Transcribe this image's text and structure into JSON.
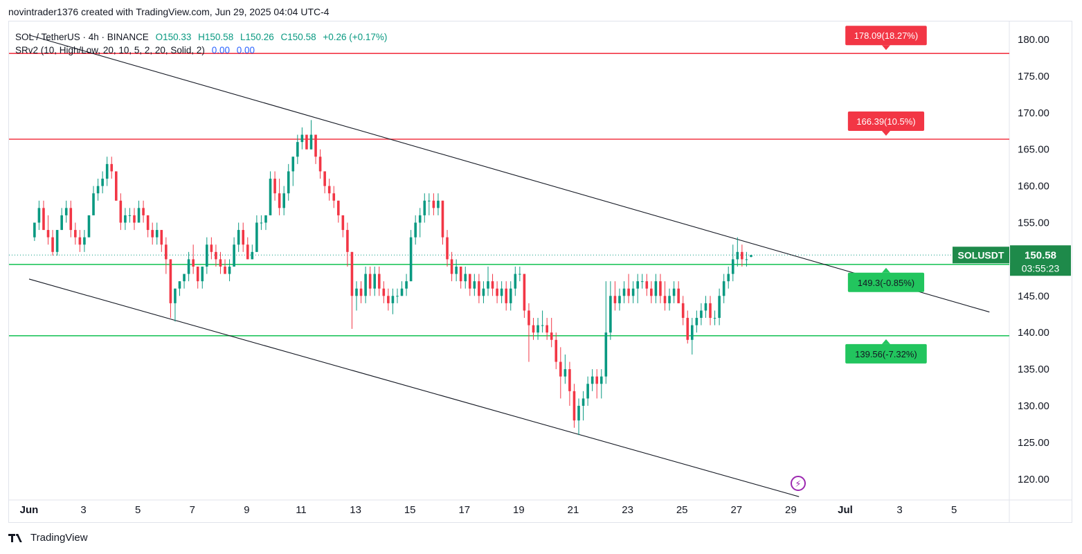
{
  "header": {
    "credit": "novintrader1376 created with TradingView.com, Jun 29, 2025 04:04 UTC-4"
  },
  "legend": {
    "symbol_line": "SOL / TetherUS · 4h · BINANCE",
    "o": "O150.33",
    "h": "H150.58",
    "l": "L150.26",
    "c": "C150.58",
    "change": "+0.26 (+0.17%)",
    "indicator": "SRv2 (10, High/Low, 20, 10, 5, 2, 20, Solid, 2)",
    "ind_v1": "0.00",
    "ind_v2": "0.00"
  },
  "price_tag": {
    "symbol": "SOLUSDT",
    "price": "150.58",
    "countdown": "03:55:23"
  },
  "footer": {
    "brand": "TradingView"
  },
  "colors": {
    "up": "#089981",
    "down": "#f23645",
    "resistance": "#f23645",
    "support": "#22c55e",
    "trend": "#131722"
  },
  "chart_data": {
    "type": "candlestick",
    "symbol": "SOL / TetherUS",
    "interval": "4h",
    "exchange": "BINANCE",
    "y_ticks": [
      180,
      175,
      170,
      165,
      160,
      155,
      150,
      145,
      140,
      135,
      130,
      125,
      120
    ],
    "y_tick_labels": [
      "180.00",
      "175.00",
      "170.00",
      "165.00",
      "160.00",
      "155.00",
      "150.00",
      "145.00",
      "140.00",
      "135.00",
      "130.00",
      "125.00",
      "120.00"
    ],
    "x_ticks": [
      {
        "day": 1,
        "label": "Jun"
      },
      {
        "day": 3,
        "label": "3"
      },
      {
        "day": 5,
        "label": "5"
      },
      {
        "day": 7,
        "label": "7"
      },
      {
        "day": 9,
        "label": "9"
      },
      {
        "day": 11,
        "label": "11"
      },
      {
        "day": 13,
        "label": "13"
      },
      {
        "day": 15,
        "label": "15"
      },
      {
        "day": 17,
        "label": "17"
      },
      {
        "day": 19,
        "label": "19"
      },
      {
        "day": 21,
        "label": "21"
      },
      {
        "day": 23,
        "label": "23"
      },
      {
        "day": 25,
        "label": "25"
      },
      {
        "day": 27,
        "label": "27"
      },
      {
        "day": 29,
        "label": "29"
      },
      {
        "day": 31,
        "label": "Jul"
      },
      {
        "day": 33,
        "label": "3"
      },
      {
        "day": 35,
        "label": "5"
      }
    ],
    "levels": [
      {
        "price": 178.09,
        "label": "178.09(18.27%)",
        "kind": "resistance",
        "label_day": 32.5
      },
      {
        "price": 166.39,
        "label": "166.39(10.5%)",
        "kind": "resistance",
        "label_day": 32.5
      },
      {
        "price": 149.3,
        "label": "149.3(-0.85%)",
        "kind": "support",
        "label_day": 32.5
      },
      {
        "price": 139.56,
        "label": "139.56(-7.32%)",
        "kind": "support",
        "label_day": 32.5
      }
    ],
    "last_price": 150.58,
    "trendlines": [
      {
        "from": {
          "day": 1.0,
          "price": 180.6
        },
        "to": {
          "day": 36.3,
          "price": 142.8
        }
      },
      {
        "from": {
          "day": 1.0,
          "price": 147.3
        },
        "to": {
          "day": 29.3,
          "price": 117.6
        }
      }
    ],
    "ohlc": [
      [
        153,
        155,
        152.5,
        155
      ],
      [
        155,
        158,
        154,
        157
      ],
      [
        157,
        158,
        154,
        154
      ],
      [
        154,
        156,
        152,
        153
      ],
      [
        153,
        154,
        150.5,
        151
      ],
      [
        151,
        154,
        150.5,
        154
      ],
      [
        154,
        157,
        154,
        156
      ],
      [
        156,
        158,
        155,
        157
      ],
      [
        157,
        158,
        153,
        154
      ],
      [
        154,
        155,
        152,
        153
      ],
      [
        153,
        154,
        151,
        152
      ],
      [
        152,
        154,
        151,
        153
      ],
      [
        153,
        156,
        153,
        156
      ],
      [
        156,
        160,
        156,
        159
      ],
      [
        159,
        161,
        158,
        160
      ],
      [
        160,
        162,
        159,
        161
      ],
      [
        161,
        164,
        160,
        163
      ],
      [
        163,
        164,
        161,
        162
      ],
      [
        162,
        162,
        158,
        158
      ],
      [
        158,
        159,
        154,
        155
      ],
      [
        155,
        157,
        154,
        156
      ],
      [
        156,
        157,
        155,
        156
      ],
      [
        156,
        157,
        154,
        155
      ],
      [
        155,
        158,
        155,
        157
      ],
      [
        157,
        158,
        155,
        156
      ],
      [
        156,
        156,
        153,
        154
      ],
      [
        154,
        155,
        152,
        153
      ],
      [
        153,
        155,
        152,
        154
      ],
      [
        154,
        154,
        151,
        152
      ],
      [
        152,
        153,
        148,
        150
      ],
      [
        150,
        150,
        142,
        144
      ],
      [
        144,
        146,
        141.5,
        146
      ],
      [
        146,
        147,
        145,
        147
      ],
      [
        147,
        148,
        146,
        148
      ],
      [
        148,
        151,
        147,
        150
      ],
      [
        150,
        152,
        148,
        149
      ],
      [
        149,
        149,
        146,
        147
      ],
      [
        147,
        149,
        146,
        149
      ],
      [
        149,
        153,
        148,
        152
      ],
      [
        152,
        153,
        150,
        151
      ],
      [
        151,
        152,
        149,
        150
      ],
      [
        150,
        151,
        148,
        149
      ],
      [
        149,
        150,
        148,
        148
      ],
      [
        148,
        150,
        147,
        149
      ],
      [
        149,
        153,
        149,
        152
      ],
      [
        152,
        155,
        151,
        154
      ],
      [
        154,
        155,
        151,
        152
      ],
      [
        152,
        153,
        150,
        150
      ],
      [
        150,
        152,
        150,
        151
      ],
      [
        151,
        156,
        151,
        155
      ],
      [
        155,
        156,
        154,
        155
      ],
      [
        155,
        156,
        154,
        156
      ],
      [
        156,
        162,
        156,
        161
      ],
      [
        161,
        162,
        158,
        159
      ],
      [
        159,
        161,
        156,
        157
      ],
      [
        157,
        160,
        156,
        159
      ],
      [
        159,
        163,
        158,
        162
      ],
      [
        162,
        164,
        160,
        164
      ],
      [
        164,
        167,
        163,
        166
      ],
      [
        166,
        168,
        165,
        167
      ],
      [
        167,
        167,
        165,
        165
      ],
      [
        165,
        169,
        165,
        167
      ],
      [
        167,
        167,
        163,
        164
      ],
      [
        164,
        165,
        161,
        162
      ],
      [
        162,
        162,
        159,
        160
      ],
      [
        160,
        161,
        158,
        159
      ],
      [
        159,
        160,
        157,
        158
      ],
      [
        158,
        158,
        155,
        156
      ],
      [
        156,
        156,
        153,
        154
      ],
      [
        154,
        155,
        149,
        151
      ],
      [
        151,
        151,
        140.5,
        145
      ],
      [
        145,
        147,
        143,
        146
      ],
      [
        146,
        147,
        144,
        145
      ],
      [
        145,
        149,
        144,
        148
      ],
      [
        148,
        149,
        145,
        146
      ],
      [
        146,
        149,
        145,
        148
      ],
      [
        148,
        149,
        145,
        146
      ],
      [
        146,
        147,
        144,
        145
      ],
      [
        145,
        146,
        143,
        144
      ],
      [
        144,
        146,
        142.5,
        145
      ],
      [
        145,
        146,
        144,
        145
      ],
      [
        145,
        147,
        145,
        146
      ],
      [
        146,
        148,
        145,
        147
      ],
      [
        147,
        154,
        147,
        153
      ],
      [
        153,
        156,
        152,
        155
      ],
      [
        155,
        157,
        153,
        156
      ],
      [
        156,
        159,
        155,
        158
      ],
      [
        158,
        159,
        156,
        158
      ],
      [
        158,
        159,
        156,
        157
      ],
      [
        157,
        159,
        156,
        158
      ],
      [
        158,
        158,
        152,
        153
      ],
      [
        153,
        154,
        149,
        150
      ],
      [
        150,
        151,
        147,
        148
      ],
      [
        148,
        150,
        147,
        149
      ],
      [
        149,
        149,
        146,
        147
      ],
      [
        147,
        149,
        146,
        148
      ],
      [
        148,
        148,
        145,
        146
      ],
      [
        146,
        148,
        145,
        147
      ],
      [
        147,
        148,
        144,
        145
      ],
      [
        145,
        147,
        144,
        146
      ],
      [
        146,
        149,
        145,
        147
      ],
      [
        147,
        148,
        145,
        146
      ],
      [
        146,
        147,
        144,
        145
      ],
      [
        145,
        147,
        144,
        146
      ],
      [
        146,
        147,
        143,
        144
      ],
      [
        144,
        147,
        143,
        146
      ],
      [
        146,
        149,
        145,
        148
      ],
      [
        148,
        149,
        147,
        148
      ],
      [
        148,
        148,
        142,
        143
      ],
      [
        143,
        144,
        136,
        141
      ],
      [
        141,
        142,
        139,
        140
      ],
      [
        140,
        142,
        139,
        141
      ],
      [
        141,
        143,
        140,
        141
      ],
      [
        141,
        142,
        139,
        140
      ],
      [
        140,
        142,
        138,
        139
      ],
      [
        139,
        140,
        135,
        136
      ],
      [
        136,
        138,
        131,
        134
      ],
      [
        134,
        137,
        133,
        135
      ],
      [
        135,
        136,
        130,
        132
      ],
      [
        132,
        133,
        127,
        128
      ],
      [
        128,
        131,
        126,
        130
      ],
      [
        130,
        132,
        128,
        131
      ],
      [
        131,
        134,
        130,
        133
      ],
      [
        133,
        135,
        132,
        134
      ],
      [
        134,
        135,
        131,
        133
      ],
      [
        133,
        135,
        131,
        134
      ],
      [
        134,
        147,
        133,
        140
      ],
      [
        140,
        147,
        139,
        145
      ],
      [
        145,
        147,
        143,
        144
      ],
      [
        144,
        146,
        143,
        145
      ],
      [
        145,
        147,
        144,
        146
      ],
      [
        146,
        148,
        144,
        145
      ],
      [
        145,
        147,
        144,
        146
      ],
      [
        146,
        148,
        144,
        147
      ],
      [
        147,
        148,
        146,
        147
      ],
      [
        147,
        148,
        145,
        146
      ],
      [
        146,
        147,
        144,
        145
      ],
      [
        145,
        148,
        144,
        147
      ],
      [
        147,
        148,
        144,
        145
      ],
      [
        145,
        147,
        143,
        144
      ],
      [
        144,
        146,
        143,
        145
      ],
      [
        145,
        147,
        144,
        146
      ],
      [
        146,
        147,
        144,
        144
      ],
      [
        144,
        145,
        141,
        142
      ],
      [
        142,
        143,
        138.5,
        139
      ],
      [
        139,
        142,
        137,
        141
      ],
      [
        141,
        143,
        140,
        142
      ],
      [
        142,
        144,
        141,
        143
      ],
      [
        143,
        145,
        142,
        144
      ],
      [
        144,
        145,
        141,
        142
      ],
      [
        142,
        143,
        141,
        142
      ],
      [
        142,
        146,
        141,
        145
      ],
      [
        145,
        148,
        144,
        147
      ],
      [
        147,
        149,
        146,
        148
      ],
      [
        148,
        152,
        147,
        150
      ],
      [
        150,
        153,
        149,
        151
      ],
      [
        151,
        152,
        149,
        150
      ],
      [
        150,
        151,
        149,
        150
      ],
      [
        150.33,
        150.58,
        150.26,
        150.58
      ]
    ],
    "ohlc_start_day": 1.2,
    "ohlc_step_days": 0.1667
  }
}
